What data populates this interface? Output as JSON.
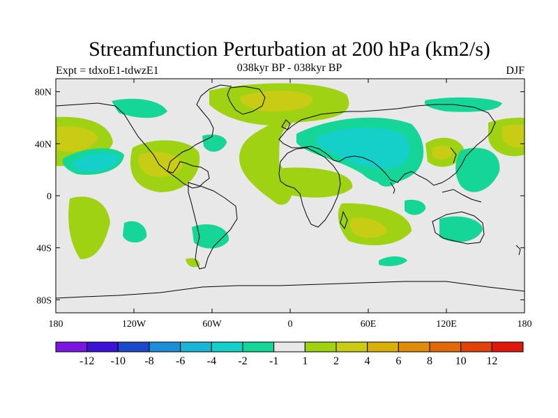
{
  "title": "Streamfunction Perturbation at 200 hPa (km2/s)",
  "experiment": "Expt = tdxoE1-tdwzE1",
  "period": "038kyr BP - 038kyr BP",
  "season": "DJF",
  "map": {
    "projection": "cylindrical-equidistant",
    "lon_range": [
      -180,
      180
    ],
    "lat_range": [
      -90,
      90
    ],
    "land_mask_color": "#e8e8e8",
    "coastline_color": "#000000",
    "lat_ticks": [
      {
        "lat": 80,
        "label": "80N"
      },
      {
        "lat": 40,
        "label": "40N"
      },
      {
        "lat": 0,
        "label": "0"
      },
      {
        "lat": -40,
        "label": "40S"
      },
      {
        "lat": -80,
        "label": "80S"
      }
    ],
    "lon_ticks": [
      {
        "lon": -180,
        "label": "180"
      },
      {
        "lon": -120,
        "label": "120W"
      },
      {
        "lon": -60,
        "label": "60W"
      },
      {
        "lon": 0,
        "label": "0"
      },
      {
        "lon": 60,
        "label": "60E"
      },
      {
        "lon": 120,
        "label": "120E"
      },
      {
        "lon": 180,
        "label": "180"
      }
    ]
  },
  "colorbar": {
    "colors": [
      "#7a16e0",
      "#3b12d6",
      "#1c49cc",
      "#1d8ed8",
      "#1ab4d4",
      "#14d0c8",
      "#15d696",
      "#e8e8e8",
      "#a0d214",
      "#c8cc14",
      "#d9b00a",
      "#de8c0a",
      "#e06a0a",
      "#e0420a",
      "#e0170d"
    ],
    "labels": [
      "-12",
      "-10",
      "-8",
      "-6",
      "-4",
      "-2",
      "-1",
      "1",
      "2",
      "4",
      "6",
      "8",
      "10",
      "12"
    ]
  },
  "chart_data": {
    "type": "filled-contour-map",
    "variable": "200 hPa streamfunction perturbation",
    "units": "km2/s",
    "levels": [
      -12,
      -10,
      -8,
      -6,
      -4,
      -2,
      -1,
      1,
      2,
      4,
      6,
      8,
      10,
      12
    ],
    "features": [
      {
        "name": "north-pacific-west",
        "lon": -170,
        "lat": 45,
        "peak": 4
      },
      {
        "name": "north-pacific-cyclonic",
        "lon": -150,
        "lat": 25,
        "peak": -4
      },
      {
        "name": "north-america-arctic",
        "lon": -100,
        "lat": 68,
        "peak": -2
      },
      {
        "name": "gulf-mexico-center",
        "lon": -95,
        "lat": 24,
        "peak": 4
      },
      {
        "name": "north-atlantic-anticyclone",
        "lon": -5,
        "lat": 70,
        "peak": 4
      },
      {
        "name": "central-atlantic-ridge",
        "lon": -25,
        "lat": 30,
        "peak": 2
      },
      {
        "name": "eurasia-cyclonic",
        "lon": 70,
        "lat": 45,
        "peak": -4
      },
      {
        "name": "siberia-arctic",
        "lon": 130,
        "lat": 65,
        "peak": -2
      },
      {
        "name": "east-asia",
        "lon": 125,
        "lat": 38,
        "peak": 4
      },
      {
        "name": "north-pacific-east",
        "lon": 170,
        "lat": 45,
        "peak": 4
      },
      {
        "name": "southern-indian-ocean",
        "lon": 60,
        "lat": -25,
        "peak": 4
      },
      {
        "name": "south-pacific-west",
        "lon": -150,
        "lat": -30,
        "peak": 2
      },
      {
        "name": "australia",
        "lon": 135,
        "lat": -30,
        "peak": -2
      },
      {
        "name": "south-atlantic",
        "lon": -50,
        "lat": -35,
        "peak": -2
      },
      {
        "name": "western-pacific-tropics",
        "lon": 140,
        "lat": 10,
        "peak": -2
      }
    ]
  }
}
